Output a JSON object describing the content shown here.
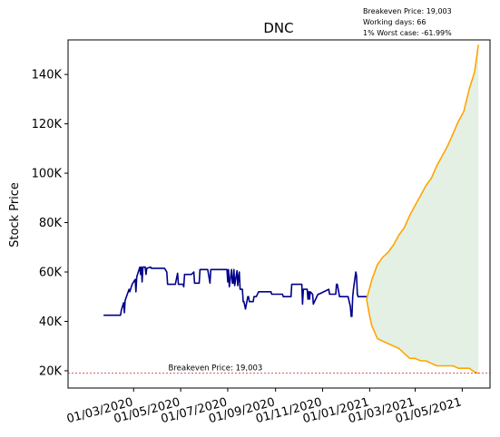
{
  "chart_data": {
    "type": "line",
    "title": "DNC",
    "ylabel": "Stock Price",
    "xlabel": "",
    "ylim": [
      13000,
      154000
    ],
    "xlim": [
      "2019-12-07",
      "2021-06-06"
    ],
    "yticks": [
      20000,
      40000,
      60000,
      80000,
      100000,
      120000,
      140000
    ],
    "ytick_labels": [
      "20K",
      "40K",
      "60K",
      "80K",
      "100K",
      "120K",
      "140K"
    ],
    "xticks": [
      "2020-03-01",
      "2020-05-01",
      "2020-07-01",
      "2020-09-01",
      "2020-11-01",
      "2021-01-01",
      "2021-03-01",
      "2021-05-01"
    ],
    "xtick_labels": [
      "01/03/2020",
      "01/05/2020",
      "01/07/2020",
      "01/09/2020",
      "01/11/2020",
      "01/01/2021",
      "01/03/2021",
      "01/05/2021"
    ],
    "notes": [
      "Breakeven Price: 19,003",
      "Working days: 66",
      "1% Worst case: -61.99%"
    ],
    "breakeven": {
      "value": 19003,
      "label": "Breakeven Price: 19,003",
      "color": "#d62728"
    },
    "series": [
      {
        "color": "#00008b",
        "x": [
          "2020-01-22",
          "2020-02-13",
          "2020-02-14",
          "2020-02-17",
          "2020-02-18",
          "2020-02-19",
          "2020-02-24",
          "2020-02-25",
          "2020-02-28",
          "2020-03-03",
          "2020-03-04",
          "2020-03-05",
          "2020-03-09",
          "2020-03-10",
          "2020-03-11",
          "2020-03-12",
          "2020-03-13",
          "2020-03-16",
          "2020-03-17",
          "2020-03-18",
          "2020-03-23",
          "2020-03-24",
          "2020-04-10",
          "2020-04-13",
          "2020-04-14",
          "2020-04-24",
          "2020-04-27",
          "2020-04-28",
          "2020-05-04",
          "2020-05-05",
          "2020-05-06",
          "2020-05-15",
          "2020-05-18",
          "2020-05-19",
          "2020-05-25",
          "2020-05-26",
          "2020-06-05",
          "2020-06-08",
          "2020-06-09",
          "2020-06-30",
          "2020-07-01",
          "2020-07-02",
          "2020-07-03",
          "2020-07-06",
          "2020-07-07",
          "2020-07-08",
          "2020-07-09",
          "2020-07-10",
          "2020-07-13",
          "2020-07-14",
          "2020-07-15",
          "2020-07-16",
          "2020-07-17",
          "2020-07-20",
          "2020-07-21",
          "2020-07-22",
          "2020-07-24",
          "2020-07-27",
          "2020-07-28",
          "2020-07-29",
          "2020-08-03",
          "2020-08-04",
          "2020-08-05",
          "2020-08-06",
          "2020-08-07",
          "2020-08-10",
          "2020-08-26",
          "2020-08-27",
          "2020-09-10",
          "2020-09-11",
          "2020-09-21",
          "2020-09-22",
          "2020-10-05",
          "2020-10-06",
          "2020-10-07",
          "2020-10-12",
          "2020-10-13",
          "2020-10-14",
          "2020-10-15",
          "2020-10-16",
          "2020-10-19",
          "2020-10-20",
          "2020-10-26",
          "2020-10-27",
          "2020-11-09",
          "2020-11-10",
          "2020-11-18",
          "2020-11-19",
          "2020-11-20",
          "2020-11-23",
          "2020-12-04",
          "2020-12-07",
          "2020-12-08",
          "2020-12-09",
          "2020-12-10",
          "2020-12-11",
          "2020-12-14",
          "2020-12-15",
          "2020-12-16",
          "2020-12-17",
          "2020-12-18",
          "2020-12-28"
        ],
        "y": [
          42500,
          42500,
          44500,
          47500,
          43500,
          48500,
          53000,
          52000,
          55000,
          57000,
          52000,
          58000,
          62000,
          59000,
          62000,
          56000,
          62000,
          62000,
          59000,
          61500,
          62000,
          61500,
          61500,
          60000,
          55000,
          55000,
          59500,
          55000,
          55000,
          54000,
          59000,
          59000,
          60000,
          55500,
          55500,
          61000,
          61000,
          55500,
          61000,
          61000,
          56000,
          61000,
          54000,
          61000,
          55500,
          55500,
          61000,
          54500,
          60500,
          54500,
          58000,
          60000,
          53000,
          53000,
          48000,
          48000,
          45000,
          50000,
          50000,
          48000,
          48000,
          50000,
          50000,
          50000,
          50000,
          52000,
          52000,
          51000,
          51000,
          50000,
          50000,
          55000,
          55000,
          47000,
          53000,
          53000,
          49000,
          52000,
          49000,
          52000,
          51000,
          47000,
          51000,
          51000,
          53000,
          51000,
          51000,
          55000,
          55000,
          50000,
          50000,
          46000,
          42000,
          42000,
          50000,
          53000,
          60000,
          58500,
          51000,
          50000,
          50000,
          50000
        ]
      },
      {
        "color": "#ffa500",
        "x": [
          "2020-12-28",
          "2021-01-04",
          "2021-01-11",
          "2021-01-18",
          "2021-01-25",
          "2021-02-01",
          "2021-02-08",
          "2021-02-15",
          "2021-02-22",
          "2021-03-01",
          "2021-03-08",
          "2021-03-15",
          "2021-03-22",
          "2021-03-29",
          "2021-04-05",
          "2021-04-12",
          "2021-04-19",
          "2021-04-26",
          "2021-05-03",
          "2021-05-10",
          "2021-05-17",
          "2021-05-22"
        ],
        "y": [
          49000,
          57000,
          63000,
          66000,
          68000,
          71000,
          75000,
          78000,
          83000,
          87000,
          91000,
          95000,
          98000,
          103000,
          107000,
          111000,
          116000,
          121000,
          125000,
          134000,
          141000,
          152000
        ]
      },
      {
        "color": "#ffa500",
        "x": [
          "2020-12-28",
          "2021-01-01",
          "2021-01-04",
          "2021-01-07",
          "2021-01-11",
          "2021-01-18",
          "2021-01-25",
          "2021-02-01",
          "2021-02-08",
          "2021-02-15",
          "2021-02-22",
          "2021-03-01",
          "2021-03-08",
          "2021-03-15",
          "2021-03-22",
          "2021-03-29",
          "2021-04-05",
          "2021-04-12",
          "2021-04-19",
          "2021-04-26",
          "2021-05-03",
          "2021-05-10",
          "2021-05-17",
          "2021-05-22"
        ],
        "y": [
          49000,
          42000,
          38000,
          36000,
          33000,
          32000,
          31000,
          30000,
          29000,
          27000,
          25000,
          25000,
          24000,
          24000,
          23000,
          22000,
          22000,
          22000,
          22000,
          21000,
          21000,
          21000,
          19500,
          19000
        ]
      }
    ],
    "fill_between": {
      "color": "#2e8b2e",
      "opacity": 0.13
    }
  }
}
